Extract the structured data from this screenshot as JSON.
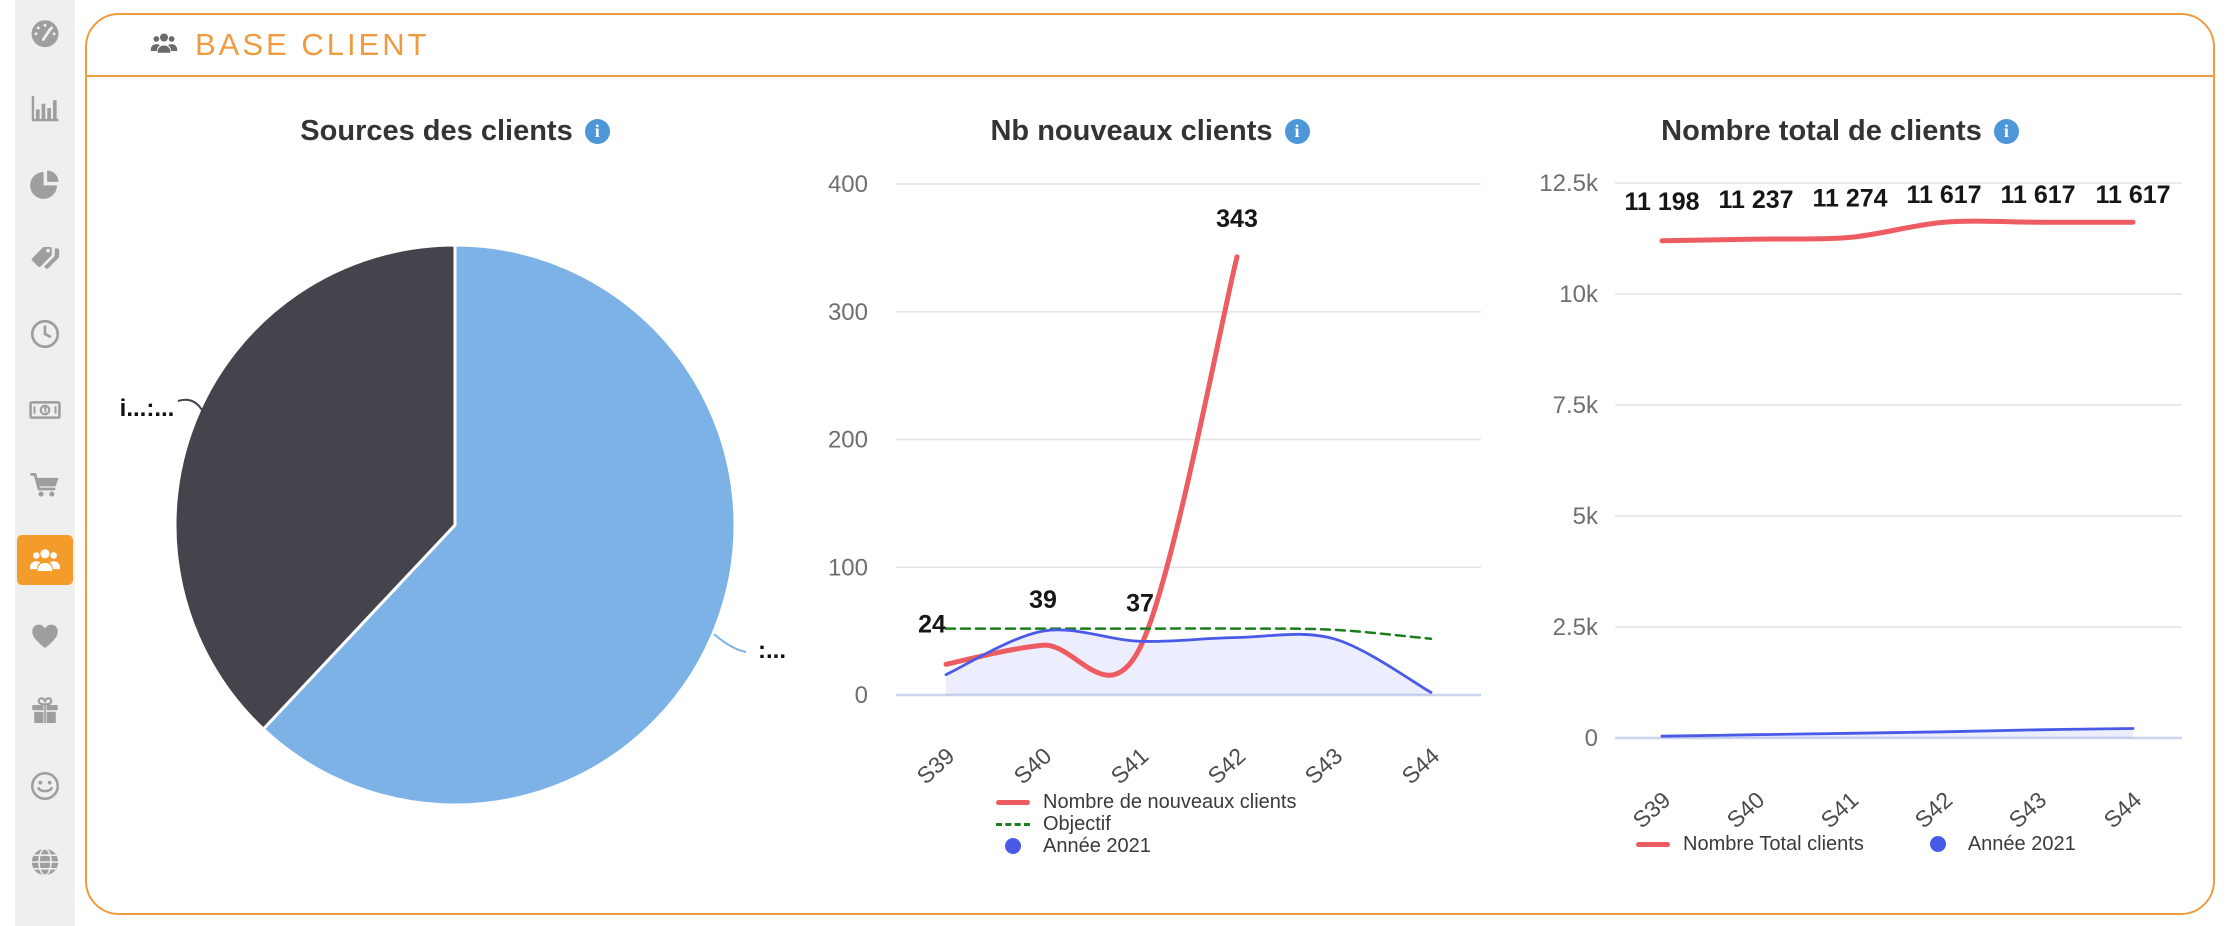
{
  "sidebar": {
    "background": "#efefef",
    "icon_color": "#9e9e9e",
    "active_background": "#F49C2B",
    "items": [
      {
        "icon": "dashboard-gauge-icon",
        "active": false
      },
      {
        "icon": "bar-chart-icon",
        "active": false
      },
      {
        "icon": "pie-chart-icon",
        "active": false
      },
      {
        "icon": "tags-icon",
        "active": false
      },
      {
        "icon": "clock-icon",
        "active": false
      },
      {
        "icon": "money-bill-icon",
        "active": false
      },
      {
        "icon": "shopping-cart-icon",
        "active": false
      },
      {
        "icon": "users-icon",
        "active": true
      },
      {
        "icon": "heart-icon",
        "active": false
      },
      {
        "icon": "gift-icon",
        "active": false
      },
      {
        "icon": "smiley-icon",
        "active": false
      },
      {
        "icon": "globe-icon",
        "active": false
      }
    ]
  },
  "panel": {
    "accent_color": "#EE9C3F",
    "header": {
      "icon": "users-icon",
      "title": "BASE CLIENT"
    }
  },
  "chart_data": [
    {
      "id": "sources",
      "type": "pie",
      "title": "Sources des clients",
      "info_icon": true,
      "slices": [
        {
          "label": ":...",
          "fraction": 0.62,
          "color": "#7CB2E6"
        },
        {
          "label": "i...:...",
          "fraction": 0.38,
          "color": "#45434B"
        }
      ]
    },
    {
      "id": "nouveaux_clients",
      "type": "line",
      "title": "Nb nouveaux clients",
      "info_icon": true,
      "categories": [
        "S39",
        "S40",
        "S41",
        "S42",
        "S43",
        "S44"
      ],
      "ylim": [
        0,
        400
      ],
      "yticks": [
        {
          "v": 400,
          "label": "400"
        },
        {
          "v": 300,
          "label": "300"
        },
        {
          "v": 200,
          "label": "200"
        },
        {
          "v": 100,
          "label": "100"
        },
        {
          "v": 0,
          "label": "0"
        }
      ],
      "series": [
        {
          "name": "Nombre de nouveaux clients",
          "color": "#EC5C60",
          "style": "line",
          "values": [
            24,
            39,
            37,
            343,
            null,
            null
          ],
          "point_labels": [
            "24",
            "39",
            "37",
            "343"
          ]
        },
        {
          "name": "Objectif",
          "color": "#1B7E1B",
          "style": "dashed",
          "values": [
            52,
            52,
            52,
            52,
            51,
            44
          ]
        },
        {
          "name": "Année 2021",
          "color": "#4A5AE8",
          "style": "area",
          "values": [
            16,
            50,
            42,
            45,
            44,
            2
          ]
        }
      ],
      "legend_position": "bottom-left-vertical"
    },
    {
      "id": "total_clients",
      "type": "line",
      "title": "Nombre total de clients",
      "info_icon": true,
      "categories": [
        "S39",
        "S40",
        "S41",
        "S42",
        "S43",
        "S44"
      ],
      "ylim": [
        0,
        12500
      ],
      "yticks": [
        {
          "v": 12500,
          "label": "12.5k"
        },
        {
          "v": 10000,
          "label": "10k"
        },
        {
          "v": 7500,
          "label": "7.5k"
        },
        {
          "v": 5000,
          "label": "5k"
        },
        {
          "v": 2500,
          "label": "2.5k"
        },
        {
          "v": 0,
          "label": "0"
        }
      ],
      "series": [
        {
          "name": "Nombre Total clients",
          "color": "#EC5C60",
          "style": "line",
          "values": [
            11198,
            11237,
            11274,
            11617,
            11617,
            11617
          ],
          "point_labels": [
            "11 198",
            "11 237",
            "11 274",
            "11 617",
            "11 617",
            "11 617"
          ]
        },
        {
          "name": "Année 2021",
          "color": "#4A5AE8",
          "style": "area",
          "values": [
            40,
            75,
            105,
            140,
            185,
            215
          ]
        }
      ],
      "legend_position": "bottom-horizontal"
    }
  ]
}
